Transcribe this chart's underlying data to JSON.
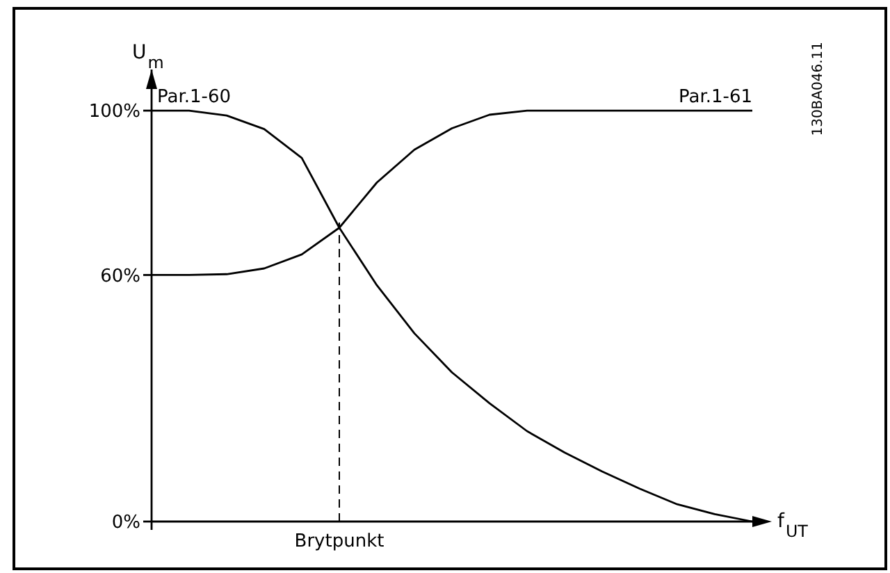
{
  "chart_data": {
    "type": "line",
    "ylabel": "U$_{m}$",
    "xlabel": "f$_{UT}$",
    "categories": [
      null,
      null,
      null,
      null,
      null,
      "Brytpunkt",
      null,
      null,
      null,
      null,
      null,
      null,
      null,
      null,
      null,
      null,
      null
    ],
    "ylim": [
      0,
      110
    ],
    "yticks": [
      {
        "value": 0,
        "label": "0%"
      },
      {
        "value": 60,
        "label": "60%"
      },
      {
        "value": 100,
        "label": "100%"
      }
    ],
    "line_style": "solid",
    "series": [
      {
        "name": "Par.1-60",
        "color": "#000000",
        "values": [
          100,
          100,
          98.8,
          95.5,
          88.5,
          71.5,
          57.5,
          45.8,
          36.3,
          28.8,
          22,
          16.8,
          12.2,
          8,
          4.2,
          1.8,
          0
        ]
      },
      {
        "name": "Par.1-61",
        "color": "#000000",
        "values": [
          60,
          60,
          60.2,
          61.6,
          65,
          71.5,
          82.5,
          90.5,
          95.7,
          99,
          100,
          100,
          100,
          100,
          100,
          100,
          100
        ]
      }
    ],
    "ref_lines": [
      {
        "axis": "x",
        "value": "Brytpunkt",
        "line_style": "dashed",
        "color": "#000000"
      }
    ],
    "annotations": [
      "130BA046.11"
    ]
  }
}
